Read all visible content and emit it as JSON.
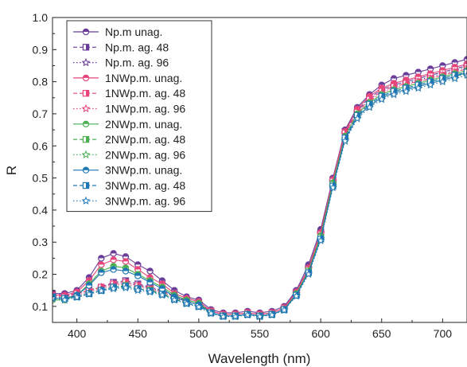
{
  "chart_data": {
    "type": "line",
    "title": "",
    "xlabel": "Wavelength (nm)",
    "ylabel": "R",
    "xlim": [
      380,
      720
    ],
    "ylim": [
      0.05,
      1.0
    ],
    "x_ticks": [
      400,
      450,
      500,
      550,
      600,
      650,
      700
    ],
    "y_ticks": [
      0.1,
      0.2,
      0.3,
      0.4,
      0.5,
      0.6,
      0.7,
      0.8,
      0.9,
      1.0
    ],
    "grid": false,
    "legend_position": "top-left",
    "x": [
      380,
      390,
      400,
      410,
      420,
      430,
      440,
      450,
      460,
      470,
      480,
      490,
      500,
      510,
      520,
      530,
      540,
      550,
      560,
      570,
      580,
      590,
      600,
      610,
      620,
      630,
      640,
      650,
      660,
      670,
      680,
      690,
      700,
      710,
      720
    ],
    "series": [
      {
        "name": "Np.m unag.",
        "color": "#6a3d9a",
        "dash": "solid",
        "marker": "circle-half",
        "values": [
          0.14,
          0.14,
          0.15,
          0.19,
          0.25,
          0.265,
          0.255,
          0.23,
          0.21,
          0.18,
          0.15,
          0.13,
          0.12,
          0.09,
          0.08,
          0.08,
          0.085,
          0.08,
          0.085,
          0.1,
          0.15,
          0.23,
          0.34,
          0.5,
          0.65,
          0.72,
          0.76,
          0.79,
          0.81,
          0.82,
          0.83,
          0.84,
          0.85,
          0.86,
          0.87
        ]
      },
      {
        "name": "Np.m. ag. 48",
        "color": "#6a3d9a",
        "dash": "dash",
        "marker": "square-half",
        "values": [
          0.14,
          0.135,
          0.14,
          0.15,
          0.16,
          0.175,
          0.18,
          0.17,
          0.16,
          0.15,
          0.13,
          0.12,
          0.11,
          0.085,
          0.075,
          0.075,
          0.08,
          0.075,
          0.08,
          0.095,
          0.145,
          0.22,
          0.33,
          0.495,
          0.645,
          0.71,
          0.75,
          0.775,
          0.79,
          0.8,
          0.81,
          0.82,
          0.83,
          0.84,
          0.85
        ]
      },
      {
        "name": "Np.m. ag. 96",
        "color": "#6a3d9a",
        "dash": "dot",
        "marker": "star",
        "values": [
          0.135,
          0.13,
          0.14,
          0.15,
          0.16,
          0.17,
          0.175,
          0.165,
          0.16,
          0.145,
          0.13,
          0.12,
          0.11,
          0.085,
          0.075,
          0.075,
          0.08,
          0.075,
          0.08,
          0.095,
          0.145,
          0.22,
          0.33,
          0.49,
          0.64,
          0.705,
          0.745,
          0.77,
          0.785,
          0.795,
          0.805,
          0.815,
          0.825,
          0.835,
          0.845
        ]
      },
      {
        "name": "1NWp.m. unag.",
        "color": "#e8457a",
        "dash": "solid",
        "marker": "circle-half",
        "values": [
          0.135,
          0.135,
          0.145,
          0.18,
          0.23,
          0.245,
          0.24,
          0.215,
          0.19,
          0.17,
          0.14,
          0.125,
          0.115,
          0.085,
          0.075,
          0.075,
          0.08,
          0.075,
          0.08,
          0.095,
          0.145,
          0.22,
          0.33,
          0.495,
          0.645,
          0.715,
          0.755,
          0.78,
          0.795,
          0.805,
          0.815,
          0.825,
          0.835,
          0.845,
          0.855
        ]
      },
      {
        "name": "1NWp.m. ag. 48",
        "color": "#e8457a",
        "dash": "dash",
        "marker": "square-half",
        "values": [
          0.135,
          0.13,
          0.14,
          0.15,
          0.16,
          0.17,
          0.175,
          0.165,
          0.155,
          0.145,
          0.13,
          0.115,
          0.105,
          0.085,
          0.075,
          0.075,
          0.08,
          0.075,
          0.08,
          0.095,
          0.14,
          0.215,
          0.325,
          0.49,
          0.64,
          0.705,
          0.745,
          0.77,
          0.785,
          0.795,
          0.8,
          0.81,
          0.82,
          0.83,
          0.84
        ]
      },
      {
        "name": "1NWp.m. ag. 96",
        "color": "#e8457a",
        "dash": "dot",
        "marker": "star",
        "values": [
          0.13,
          0.13,
          0.135,
          0.145,
          0.155,
          0.165,
          0.17,
          0.16,
          0.155,
          0.14,
          0.125,
          0.115,
          0.105,
          0.085,
          0.075,
          0.075,
          0.08,
          0.075,
          0.08,
          0.095,
          0.14,
          0.215,
          0.325,
          0.485,
          0.635,
          0.7,
          0.74,
          0.765,
          0.78,
          0.79,
          0.8,
          0.81,
          0.82,
          0.83,
          0.84
        ]
      },
      {
        "name": "2NWp.m. unag.",
        "color": "#4caf50",
        "dash": "solid",
        "marker": "circle-half",
        "values": [
          0.12,
          0.12,
          0.135,
          0.17,
          0.21,
          0.225,
          0.22,
          0.2,
          0.18,
          0.16,
          0.135,
          0.12,
          0.11,
          0.08,
          0.07,
          0.07,
          0.075,
          0.07,
          0.075,
          0.09,
          0.14,
          0.21,
          0.32,
          0.485,
          0.63,
          0.7,
          0.735,
          0.76,
          0.775,
          0.785,
          0.795,
          0.805,
          0.815,
          0.825,
          0.835
        ]
      },
      {
        "name": "2NWp.m. ag. 48",
        "color": "#4caf50",
        "dash": "dash",
        "marker": "square-half",
        "values": [
          0.13,
          0.125,
          0.13,
          0.14,
          0.15,
          0.16,
          0.165,
          0.155,
          0.15,
          0.14,
          0.125,
          0.11,
          0.1,
          0.08,
          0.07,
          0.07,
          0.075,
          0.07,
          0.075,
          0.09,
          0.135,
          0.21,
          0.315,
          0.48,
          0.625,
          0.695,
          0.73,
          0.755,
          0.77,
          0.78,
          0.79,
          0.8,
          0.81,
          0.82,
          0.83
        ]
      },
      {
        "name": "2NWp.m. ag. 96",
        "color": "#4caf50",
        "dash": "dot",
        "marker": "star",
        "values": [
          0.125,
          0.12,
          0.13,
          0.14,
          0.15,
          0.158,
          0.162,
          0.155,
          0.148,
          0.138,
          0.122,
          0.11,
          0.1,
          0.08,
          0.07,
          0.07,
          0.075,
          0.07,
          0.075,
          0.09,
          0.135,
          0.205,
          0.31,
          0.475,
          0.62,
          0.69,
          0.725,
          0.75,
          0.765,
          0.775,
          0.785,
          0.795,
          0.805,
          0.815,
          0.825
        ]
      },
      {
        "name": "3NWp.m. unag.",
        "color": "#1f77b4",
        "dash": "solid",
        "marker": "circle-half",
        "values": [
          0.125,
          0.125,
          0.135,
          0.165,
          0.205,
          0.215,
          0.21,
          0.195,
          0.175,
          0.155,
          0.13,
          0.115,
          0.105,
          0.08,
          0.07,
          0.07,
          0.075,
          0.07,
          0.075,
          0.09,
          0.135,
          0.205,
          0.31,
          0.475,
          0.62,
          0.69,
          0.725,
          0.75,
          0.765,
          0.775,
          0.785,
          0.795,
          0.805,
          0.815,
          0.83
        ]
      },
      {
        "name": "3NWp.m. ag. 48",
        "color": "#1f77b4",
        "dash": "dash",
        "marker": "square-half",
        "values": [
          0.13,
          0.125,
          0.13,
          0.14,
          0.15,
          0.16,
          0.163,
          0.155,
          0.148,
          0.138,
          0.122,
          0.11,
          0.1,
          0.08,
          0.07,
          0.07,
          0.075,
          0.07,
          0.075,
          0.09,
          0.135,
          0.205,
          0.31,
          0.475,
          0.625,
          0.695,
          0.73,
          0.755,
          0.77,
          0.78,
          0.79,
          0.8,
          0.81,
          0.82,
          0.83
        ]
      },
      {
        "name": "3NWp.m. ag. 96",
        "color": "#1f77b4",
        "dash": "dot",
        "marker": "star",
        "values": [
          0.125,
          0.12,
          0.128,
          0.138,
          0.148,
          0.155,
          0.158,
          0.15,
          0.145,
          0.135,
          0.12,
          0.108,
          0.098,
          0.078,
          0.068,
          0.068,
          0.073,
          0.068,
          0.073,
          0.088,
          0.132,
          0.2,
          0.305,
          0.47,
          0.615,
          0.685,
          0.72,
          0.745,
          0.76,
          0.77,
          0.78,
          0.79,
          0.8,
          0.81,
          0.82
        ]
      }
    ]
  }
}
